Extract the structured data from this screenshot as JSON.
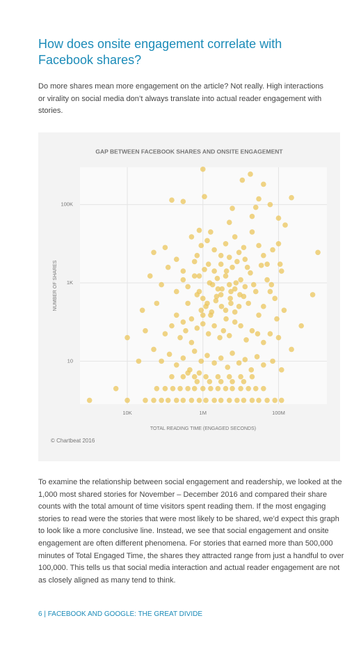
{
  "heading": "How does onsite engagement correlate with Facebook shares?",
  "intro": "Do more shares mean more engagement on the article? Not really. High interactions or virality on social media don’t always translate into actual reader engagement with stories.",
  "chart_data": {
    "type": "scatter",
    "title": "GAP BETWEEN FACEBOOK SHARES AND ONSITE ENGAGEMENT",
    "x_label": "TOTAL READING TIME (ENGAGED SECONDS)",
    "y_label": "NUMBER OF SHARES",
    "source": "© Chartbeat 2016",
    "color": "#ebc55c",
    "x_log": true,
    "y_log": true,
    "grid": true,
    "xlim": [
      560,
      1900000000
    ],
    "ylim": [
      0.8,
      900000
    ],
    "xticks": [
      {
        "value": 10000,
        "label": "10K"
      },
      {
        "value": 1000000,
        "label": "1M"
      },
      {
        "value": 100000000,
        "label": "100M"
      }
    ],
    "yticks": [
      10,
      {
        "value": 1000,
        "label": "1K"
      },
      {
        "value": 100000,
        "label": "100K"
      }
    ],
    "x": [
      1000000.0,
      18000000.0,
      11000000.0,
      40000000.0,
      1100000.0,
      150000.0,
      300000.0,
      30000000.0,
      220000000.0,
      60000000.0,
      6000000.0,
      25000000.0,
      100000000.0,
      150000000.0,
      20000000.0,
      5000000.0,
      800000.0,
      1600000.0,
      1100000000.0,
      800000000.0,
      400000000.0,
      220000000.0,
      50000.0,
      100000.0,
      40000.0,
      25000.0,
      10000.0,
      5000.0,
      1000.0,
      20000.0,
      30000.0,
      60000.0,
      80000.0,
      120000.0,
      200000.0,
      300000.0,
      500000.0,
      700000.0,
      900000.0,
      1300000.0,
      2000000.0,
      3000000.0,
      4000000.0,
      5000000.0,
      7000000.0,
      9000000.0,
      12000000.0,
      15000000.0,
      20000000.0,
      30000000.0,
      40000000.0,
      50000000.0,
      70000000.0,
      100000000.0,
      120000000.0,
      200000.0,
      300000.0,
      400000.0,
      600000.0,
      800000.0,
      1000000.0,
      1500000.0,
      2000000.0,
      2500000.0,
      3000000.0,
      4000000.0,
      5000000.0,
      6000000.0,
      8000000.0,
      10000000.0,
      13000000.0,
      18000000.0,
      25000000.0,
      35000000.0,
      50000000.0,
      65000000.0,
      80000000.0,
      110000000.0,
      200000.0,
      300000.0,
      400000.0,
      500000.0,
      700000.0,
      900000.0,
      1200000.0,
      1600000.0,
      2200000.0,
      3000000.0,
      4000000.0,
      5500000.0,
      7000000.0,
      9000000.0,
      12000000.0,
      16000000.0,
      22000000.0,
      30000000.0,
      40000000.0,
      60000000.0,
      90000000.0,
      140000000.0,
      100000.0,
      150000.0,
      250000.0,
      350000.0,
      500000.0,
      700000.0,
      1000000.0,
      1400000.0,
      2000000.0,
      2800000.0,
      3500000.0,
      5000000.0,
      7000000.0,
      10000000.0,
      14000000.0,
      20000000.0,
      28000000.0,
      40000000.0,
      60000000.0,
      100000000.0,
      50000.0,
      80000.0,
      130000.0,
      200000.0,
      300000.0,
      450000.0,
      600000.0,
      900000.0,
      1300000.0,
      2000000.0,
      3000000.0,
      4500000.0,
      6000000.0,
      9000000.0,
      13000000.0,
      19000000.0,
      27000000.0,
      40000000.0,
      70000000.0,
      120000000.0,
      30000.0,
      50000.0,
      80000.0,
      120000.0,
      200000.0,
      300000.0,
      500000.0,
      800000.0,
      1200000.0,
      2000000.0,
      3000000.0,
      5000000.0,
      8000000.0,
      12000000.0,
      20000000.0,
      30000000.0,
      50000000.0,
      80000000.0,
      120000000.0,
      10000.0,
      60000.0,
      100000.0,
      160000.0,
      250000.0,
      400000.0,
      600000.0,
      1000000.0,
      1600000.0,
      2500000.0,
      4000000.0,
      6000000.0,
      10000000.0,
      16000000.0,
      25000000.0,
      40000000.0,
      700000.0,
      1500000.0,
      3000000.0,
      6000000.0,
      12000000.0,
      150000.0,
      300000.0,
      600000.0,
      1200000.0,
      2500000.0,
      5000000.0,
      10000000.0,
      20000000.0,
      400000.0,
      800000.0,
      600000.0,
      800000.0,
      1100000.0,
      1400000.0,
      1800000.0,
      2400000.0,
      3200000.0,
      4200000.0,
      5500000.0,
      7500000.0,
      1000000.0,
      1300000.0,
      1700000.0,
      2300000.0,
      3100000.0,
      4100000.0,
      5300000.0,
      7000000.0,
      9500000.0,
      13000000.0
    ],
    "values": [
      800000,
      600000,
      420000,
      330000,
      160000,
      130000,
      120000,
      140000,
      150000,
      100000,
      80000,
      85000,
      45000,
      30000,
      50000,
      35000,
      22000,
      20000,
      6000,
      500,
      80,
      20,
      6000,
      8000,
      1500,
      200,
      40,
      2,
      1,
      10,
      60,
      300,
      900,
      2500,
      4000,
      1200,
      15000,
      5000,
      9000,
      12000,
      7000,
      3000,
      10000,
      4500,
      15000,
      6000,
      8000,
      2500,
      20000,
      9000,
      5000,
      3000,
      7000,
      10000,
      2000,
      600,
      2000,
      800,
      3500,
      1500,
      400,
      1000,
      2000,
      700,
      5000,
      1500,
      900,
      2500,
      3500,
      1200,
      4000,
      1800,
      600,
      2800,
      1200,
      900,
      400,
      3000,
      150,
      100,
      300,
      120,
      500,
      200,
      250,
      150,
      350,
      500,
      200,
      300,
      700,
      250,
      450,
      300,
      900,
      150,
      250,
      600,
      120,
      200,
      50,
      80,
      40,
      60,
      30,
      70,
      90,
      50,
      80,
      40,
      60,
      45,
      100,
      80,
      35,
      60,
      50,
      30,
      50,
      40,
      20,
      10,
      15,
      8,
      12,
      6,
      18,
      10,
      14,
      9,
      12,
      7,
      16,
      9,
      11,
      6,
      13,
      8,
      10,
      6,
      1,
      1,
      1,
      1,
      1,
      1,
      1,
      1,
      1,
      1,
      1,
      1,
      1,
      1,
      1,
      1,
      1,
      1,
      1,
      1,
      2,
      2,
      2,
      2,
      2,
      2,
      2,
      2,
      2,
      2,
      2,
      2,
      2,
      2,
      2,
      3,
      3,
      3,
      3,
      3,
      4,
      4,
      4,
      4,
      4,
      4,
      4,
      4,
      5,
      5,
      1500,
      600,
      2200,
      3000,
      900,
      1300,
      700,
      2000,
      600,
      1000,
      150,
      300,
      180,
      450,
      250,
      120,
      400,
      180,
      500,
      800
    ]
  },
  "body": "To examine the relationship between social engagement and readership, we looked at the 1,000 most shared stories for November – December 2016 and compared their share counts with the total amount of time visitors spent reading them. If the most engaging stories to read were the stories that were most likely to be shared, we’d expect this graph to look like a more conclusive line. Instead, we see that social engagement and onsite engagement are often different phenomena. For stories that earned more than 500,000 minutes of Total Engaged Time, the shares they attracted range from just a handful to over 100,000. This tells us that social media interaction and actual reader engagement are not as closely aligned as many tend to think.",
  "footer": "6 | FACEBOOK AND GOOGLE: THE GREAT DIVIDE"
}
